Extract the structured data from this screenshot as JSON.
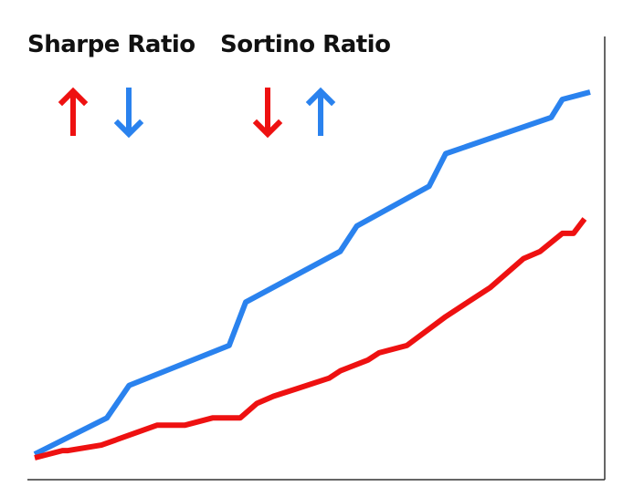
{
  "chart_data": {
    "type": "line",
    "title": "",
    "xlabel": "",
    "ylabel": "",
    "grid": false,
    "legend": "none",
    "annotations": [
      {
        "text": "Sharpe Ratio",
        "arrows": [
          {
            "direction": "up",
            "color": "#ee1111"
          },
          {
            "direction": "down",
            "color": "#2a82ee"
          }
        ]
      },
      {
        "text": "Sortino Ratio",
        "arrows": [
          {
            "direction": "down",
            "color": "#ee1111"
          },
          {
            "direction": "up",
            "color": "#2a82ee"
          }
        ]
      }
    ],
    "xlim": [
      0,
      100
    ],
    "ylim": [
      0,
      100
    ],
    "series": [
      {
        "color": "#2a82ee",
        "x": [
          0,
          13,
          17,
          35,
          38,
          55,
          58,
          71,
          74,
          93,
          95,
          100
        ],
        "y": [
          1,
          11,
          20,
          31,
          43,
          57,
          64,
          75,
          84,
          94,
          99,
          101
        ]
      },
      {
        "color": "#ee1111",
        "x": [
          0,
          5,
          6,
          12,
          22,
          27,
          32,
          37,
          40,
          43,
          47,
          53,
          55,
          60,
          62,
          67,
          74,
          78,
          82,
          85,
          88,
          91,
          95,
          97,
          99
        ],
        "y": [
          0,
          2,
          2,
          3.5,
          9,
          9,
          11,
          11,
          15,
          17,
          19,
          22,
          24,
          27,
          29,
          31,
          39,
          43,
          47,
          51,
          55,
          57,
          62,
          62,
          66
        ]
      }
    ]
  }
}
